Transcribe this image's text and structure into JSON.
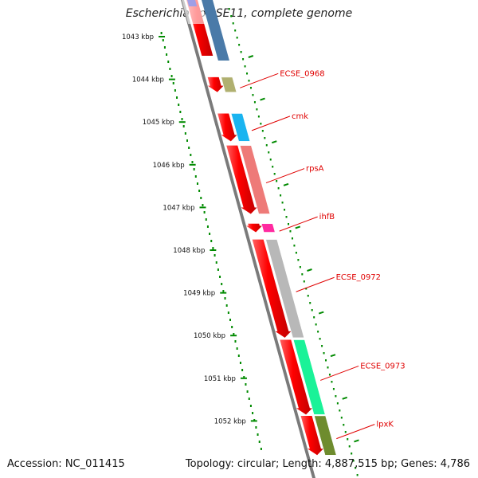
{
  "title": "Escherichia coli SE11, complete genome",
  "accession": "Accession: NC_011415",
  "topology": "Topology: circular; Length: 4,887,515 bp; Genes: 4,786",
  "ruler": [
    "1043 kbp",
    "1044 kbp",
    "1045 kbp",
    "1046 kbp",
    "1047 kbp",
    "1048 kbp",
    "1049 kbp",
    "1050 kbp",
    "1051 kbp",
    "1052 kbp"
  ],
  "genes": [
    {
      "name": "ECSE_0968",
      "start": 1043.95,
      "end": 1044.3,
      "color": "#b0b070"
    },
    {
      "name": "cmk",
      "start": 1044.8,
      "end": 1045.45,
      "color": "#1ab4f0"
    },
    {
      "name": "rpsA",
      "start": 1045.55,
      "end": 1047.15,
      "color": "#ee7a78"
    },
    {
      "name": "ihfB",
      "start": 1047.38,
      "end": 1047.58,
      "color": "#ff2aa0"
    },
    {
      "name": "ECSE_0972",
      "start": 1047.75,
      "end": 1050.05,
      "color": "#b8b8b8"
    },
    {
      "name": "ECSE_0973",
      "start": 1050.1,
      "end": 1051.85,
      "color": "#1af298"
    },
    {
      "name": "lpxK",
      "start": 1051.88,
      "end": 1052.8,
      "color": "#6e8c2e"
    }
  ],
  "colors": {
    "cds": "#ff0000",
    "backbone": "#7a7a7a",
    "ruler": "#008a00",
    "label": "#e00000"
  }
}
